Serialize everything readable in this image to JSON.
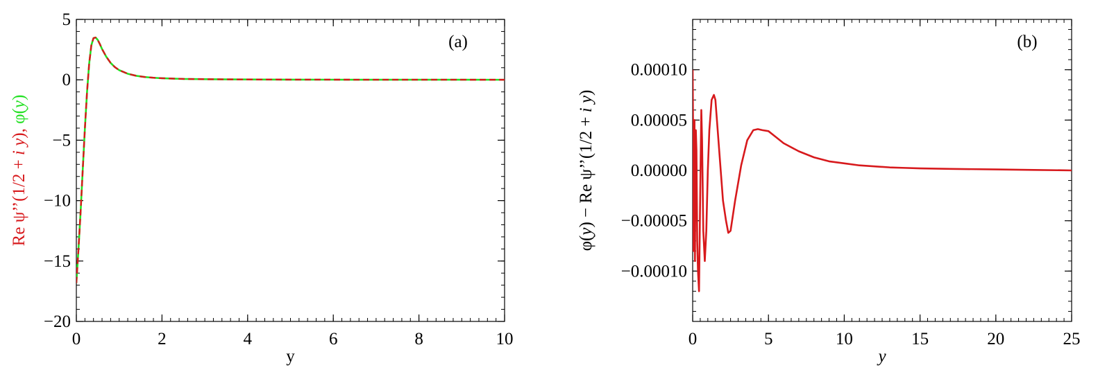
{
  "chart_data": [
    {
      "type": "line",
      "panel_label": "(a)",
      "xlabel": "y",
      "ylabel_parts": [
        {
          "text": "Re ψ’’(1/2 + ",
          "color": "#d7191c"
        },
        {
          "text": "i y",
          "color": "#d7191c",
          "italic": true
        },
        {
          "text": "), ",
          "color": "#d7191c"
        },
        {
          "text": "φ(",
          "color": "#22e022"
        },
        {
          "text": "y",
          "color": "#22e022",
          "italic": true
        },
        {
          "text": ")",
          "color": "#22e022"
        }
      ],
      "xlim": [
        0,
        10
      ],
      "ylim": [
        -20,
        5
      ],
      "xticks": [
        0,
        2,
        4,
        6,
        8,
        10
      ],
      "xtick_labels": [
        "0",
        "2",
        "4",
        "6",
        "8",
        "10"
      ],
      "yticks": [
        -20,
        -15,
        -10,
        -5,
        0,
        5
      ],
      "ytick_labels": [
        "−20",
        "−15",
        "−10",
        "−5",
        "0",
        "5"
      ],
      "grid": false,
      "series": [
        {
          "color": "#d7191c",
          "style": "dashed",
          "x": [
            0,
            0.05,
            0.1,
            0.15,
            0.2,
            0.25,
            0.3,
            0.35,
            0.4,
            0.45,
            0.5,
            0.55,
            0.6,
            0.7,
            0.8,
            0.9,
            1.0,
            1.2,
            1.4,
            1.6,
            1.8,
            2.0,
            2.5,
            3.0,
            3.5,
            4.0,
            5.0,
            6.0,
            7.0,
            8.0,
            9.0,
            10.0
          ],
          "y": [
            -16.83,
            -14.0,
            -10.9,
            -7.4,
            -4.0,
            -1.0,
            1.35,
            2.85,
            3.45,
            3.5,
            3.3,
            2.95,
            2.55,
            1.9,
            1.4,
            1.05,
            0.8,
            0.5,
            0.33,
            0.23,
            0.17,
            0.13,
            0.07,
            0.05,
            0.035,
            0.027,
            0.017,
            0.012,
            0.009,
            0.007,
            0.005,
            0.004
          ]
        },
        {
          "color": "#22e022",
          "style": "solid",
          "x": [
            0,
            0.05,
            0.1,
            0.15,
            0.2,
            0.25,
            0.3,
            0.35,
            0.4,
            0.45,
            0.5,
            0.55,
            0.6,
            0.7,
            0.8,
            0.9,
            1.0,
            1.2,
            1.4,
            1.6,
            1.8,
            2.0,
            2.5,
            3.0,
            3.5,
            4.0,
            5.0,
            6.0,
            7.0,
            8.0,
            9.0,
            10.0
          ],
          "y": [
            -16.83,
            -14.0,
            -10.9,
            -7.4,
            -4.0,
            -1.0,
            1.35,
            2.85,
            3.45,
            3.5,
            3.3,
            2.95,
            2.55,
            1.9,
            1.4,
            1.05,
            0.8,
            0.5,
            0.33,
            0.23,
            0.17,
            0.13,
            0.07,
            0.05,
            0.035,
            0.027,
            0.017,
            0.012,
            0.009,
            0.007,
            0.005,
            0.004
          ]
        }
      ]
    },
    {
      "type": "line",
      "panel_label": "(b)",
      "xlabel": "y",
      "ylabel_parts": [
        {
          "text": "φ(",
          "color": "#000000"
        },
        {
          "text": "y",
          "color": "#000000",
          "italic": true
        },
        {
          "text": ") − Re ψ’’(1/2 + ",
          "color": "#000000"
        },
        {
          "text": "i y",
          "color": "#000000",
          "italic": true
        },
        {
          "text": ")",
          "color": "#000000"
        }
      ],
      "xlim": [
        0,
        25
      ],
      "ylim": [
        -0.00015,
        0.00015
      ],
      "xticks": [
        0,
        5,
        10,
        15,
        20,
        25
      ],
      "xtick_labels": [
        "0",
        "5",
        "10",
        "15",
        "20",
        "25"
      ],
      "yticks": [
        -0.0001,
        -5e-05,
        0,
        5e-05,
        0.0001
      ],
      "ytick_labels": [
        "−0.00010",
        "−0.00005",
        "0.00000",
        "0.00005",
        "0.00010"
      ],
      "grid": false,
      "series": [
        {
          "color": "#d7191c",
          "style": "solid",
          "x": [
            0,
            0.03,
            0.06,
            0.09,
            0.12,
            0.15,
            0.18,
            0.21,
            0.25,
            0.3,
            0.35,
            0.42,
            0.5,
            0.57,
            0.62,
            0.7,
            0.8,
            0.9,
            1.0,
            1.1,
            1.25,
            1.4,
            1.5,
            1.6,
            1.8,
            2.0,
            2.2,
            2.35,
            2.5,
            2.8,
            3.2,
            3.6,
            4.0,
            4.3,
            4.6,
            5.0,
            5.5,
            6.0,
            7.0,
            8.0,
            9.0,
            10.0,
            11.0,
            12.0,
            13.0,
            14.0,
            15.0,
            17.0,
            20.0,
            22.5,
            25.0
          ],
          "y": [
            0.0001,
            3e-05,
            -8e-05,
            2e-05,
            5e-05,
            -9e-05,
            -2e-05,
            4e-05,
            2e-05,
            -7e-05,
            -0.0001,
            -0.00012,
            -2e-05,
            6e-05,
            3e-05,
            -6e-05,
            -9e-05,
            -6e-05,
            0.0,
            4e-05,
            7e-05,
            7.5e-05,
            7e-05,
            5e-05,
            1e-05,
            -3e-05,
            -5e-05,
            -6.2e-05,
            -6e-05,
            -3e-05,
            5e-06,
            3e-05,
            4e-05,
            4.1e-05,
            4e-05,
            3.9e-05,
            3.3e-05,
            2.7e-05,
            1.9e-05,
            1.3e-05,
            9e-06,
            7e-06,
            5e-06,
            4e-06,
            3e-06,
            2.5e-06,
            2e-06,
            1.5e-06,
            1e-06,
            5e-07,
            0.0
          ]
        }
      ]
    }
  ]
}
